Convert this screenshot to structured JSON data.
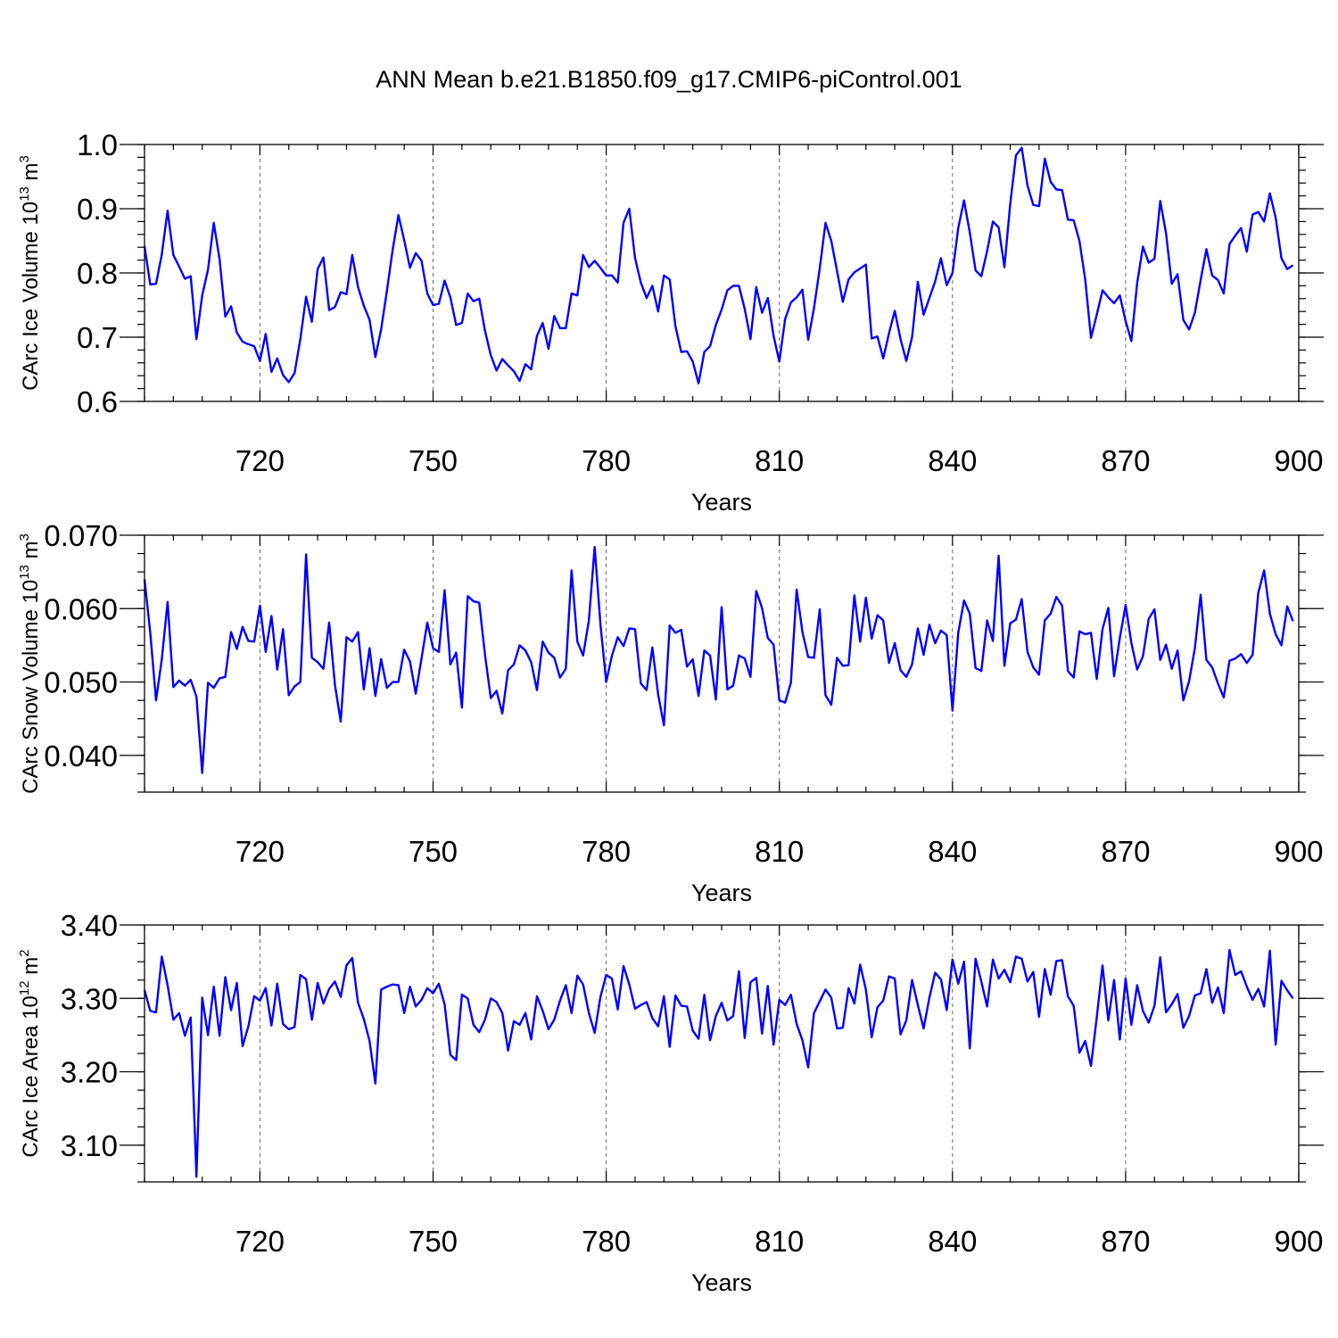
{
  "title": "ANN Mean b.e21.B1850.f09_g17.CMIP6-piControl.001",
  "colors": {
    "line": "#0000ff",
    "grid": "#666666",
    "axis": "#000000"
  },
  "chart_data": [
    {
      "type": "line",
      "xlabel": "Years",
      "ylabel": "CArc Ice Volume 10",
      "ylabel_exp": "13",
      "ylabel_unit": " m",
      "ylabel_unit_exp": "3",
      "xlim": [
        700,
        900
      ],
      "ylim": [
        0.6,
        1.0
      ],
      "xticks": [
        720,
        750,
        780,
        810,
        840,
        870,
        900
      ],
      "yticks": [
        0.6,
        0.7,
        0.8,
        0.9,
        1.0
      ],
      "ytick_labels": [
        "0.6",
        "0.7",
        "0.8",
        "0.9",
        "1.0"
      ],
      "yminor": 0.02,
      "x_start": 700,
      "values": [
        0.842,
        0.782,
        0.783,
        0.829,
        0.897,
        0.828,
        0.81,
        0.791,
        0.795,
        0.697,
        0.765,
        0.805,
        0.878,
        0.822,
        0.732,
        0.748,
        0.707,
        0.693,
        0.689,
        0.686,
        0.663,
        0.705,
        0.646,
        0.667,
        0.641,
        0.63,
        0.644,
        0.697,
        0.763,
        0.724,
        0.806,
        0.824,
        0.742,
        0.747,
        0.77,
        0.767,
        0.828,
        0.778,
        0.749,
        0.727,
        0.669,
        0.712,
        0.772,
        0.836,
        0.89,
        0.851,
        0.808,
        0.831,
        0.819,
        0.768,
        0.75,
        0.752,
        0.788,
        0.762,
        0.719,
        0.722,
        0.768,
        0.756,
        0.76,
        0.71,
        0.672,
        0.648,
        0.666,
        0.656,
        0.647,
        0.632,
        0.658,
        0.65,
        0.702,
        0.722,
        0.682,
        0.733,
        0.714,
        0.714,
        0.768,
        0.765,
        0.828,
        0.809,
        0.819,
        0.808,
        0.796,
        0.796,
        0.785,
        0.878,
        0.9,
        0.823,
        0.785,
        0.761,
        0.78,
        0.74,
        0.796,
        0.79,
        0.717,
        0.677,
        0.678,
        0.662,
        0.628,
        0.677,
        0.686,
        0.719,
        0.743,
        0.773,
        0.78,
        0.78,
        0.744,
        0.697,
        0.778,
        0.738,
        0.761,
        0.702,
        0.662,
        0.728,
        0.754,
        0.762,
        0.774,
        0.696,
        0.745,
        0.807,
        0.878,
        0.85,
        0.803,
        0.755,
        0.79,
        0.801,
        0.807,
        0.813,
        0.698,
        0.701,
        0.667,
        0.706,
        0.741,
        0.697,
        0.663,
        0.7,
        0.786,
        0.735,
        0.761,
        0.787,
        0.823,
        0.781,
        0.8,
        0.87,
        0.913,
        0.863,
        0.804,
        0.795,
        0.834,
        0.88,
        0.871,
        0.809,
        0.907,
        0.983,
        0.995,
        0.936,
        0.906,
        0.904,
        0.978,
        0.942,
        0.93,
        0.929,
        0.883,
        0.882,
        0.85,
        0.79,
        0.699,
        0.735,
        0.773,
        0.762,
        0.753,
        0.765,
        0.725,
        0.694,
        0.784,
        0.841,
        0.816,
        0.822,
        0.912,
        0.862,
        0.783,
        0.798,
        0.727,
        0.712,
        0.738,
        0.789,
        0.837,
        0.796,
        0.789,
        0.768,
        0.845,
        0.858,
        0.87,
        0.833,
        0.891,
        0.895,
        0.88,
        0.924,
        0.886,
        0.823,
        0.806,
        0.812
      ]
    },
    {
      "type": "line",
      "xlabel": "Years",
      "ylabel": "CArc Snow Volume 10",
      "ylabel_exp": "13",
      "ylabel_unit": " m",
      "ylabel_unit_exp": "3",
      "xlim": [
        700,
        900
      ],
      "ylim": [
        0.035,
        0.07
      ],
      "xticks": [
        720,
        750,
        780,
        810,
        840,
        870,
        900
      ],
      "yticks": [
        0.04,
        0.05,
        0.06,
        0.07
      ],
      "ytick_labels": [
        "0.040",
        "0.050",
        "0.060",
        "0.070"
      ],
      "yminor": 0.0025,
      "x_start": 700,
      "values": [
        0.064,
        0.0567,
        0.0475,
        0.0531,
        0.0609,
        0.0493,
        0.0502,
        0.0495,
        0.0503,
        0.048,
        0.0376,
        0.0499,
        0.0492,
        0.0505,
        0.0507,
        0.0568,
        0.0545,
        0.0575,
        0.0556,
        0.0555,
        0.0604,
        0.0541,
        0.059,
        0.0517,
        0.0572,
        0.0482,
        0.0494,
        0.05,
        0.0674,
        0.0533,
        0.0527,
        0.0518,
        0.0581,
        0.0496,
        0.0446,
        0.0561,
        0.0555,
        0.0568,
        0.049,
        0.0546,
        0.0481,
        0.0531,
        0.0492,
        0.05,
        0.05,
        0.0544,
        0.0528,
        0.0484,
        0.0532,
        0.0581,
        0.0546,
        0.0541,
        0.0625,
        0.0524,
        0.054,
        0.0465,
        0.0617,
        0.061,
        0.0608,
        0.0537,
        0.0478,
        0.0488,
        0.0457,
        0.0516,
        0.0524,
        0.055,
        0.0543,
        0.0527,
        0.0489,
        0.0555,
        0.054,
        0.0533,
        0.0506,
        0.0518,
        0.0652,
        0.0555,
        0.0536,
        0.0584,
        0.0684,
        0.0579,
        0.05,
        0.0536,
        0.0561,
        0.0549,
        0.0573,
        0.0572,
        0.0498,
        0.0489,
        0.0547,
        0.0483,
        0.0441,
        0.0577,
        0.0567,
        0.0571,
        0.0521,
        0.0531,
        0.0481,
        0.0543,
        0.0536,
        0.0476,
        0.0602,
        0.049,
        0.0495,
        0.0536,
        0.0532,
        0.0507,
        0.0624,
        0.0601,
        0.056,
        0.0551,
        0.0475,
        0.0472,
        0.0499,
        0.0626,
        0.0568,
        0.0534,
        0.0533,
        0.0599,
        0.0482,
        0.0469,
        0.0533,
        0.0522,
        0.0523,
        0.0618,
        0.0555,
        0.0615,
        0.0559,
        0.0591,
        0.0584,
        0.0526,
        0.0553,
        0.0516,
        0.0507,
        0.0524,
        0.0573,
        0.0537,
        0.0578,
        0.0553,
        0.057,
        0.0564,
        0.0461,
        0.0567,
        0.0611,
        0.0593,
        0.0519,
        0.0515,
        0.0584,
        0.0556,
        0.0672,
        0.0522,
        0.058,
        0.0585,
        0.0613,
        0.0541,
        0.052,
        0.051,
        0.0584,
        0.0593,
        0.0616,
        0.0604,
        0.0515,
        0.0506,
        0.0569,
        0.0565,
        0.0567,
        0.0504,
        0.0572,
        0.0601,
        0.0508,
        0.056,
        0.0605,
        0.0553,
        0.0517,
        0.0535,
        0.0586,
        0.0599,
        0.053,
        0.0551,
        0.0518,
        0.0543,
        0.0475,
        0.0501,
        0.0546,
        0.0619,
        0.053,
        0.052,
        0.0498,
        0.0479,
        0.0529,
        0.0532,
        0.0538,
        0.0526,
        0.0537,
        0.0622,
        0.0652,
        0.0593,
        0.0565,
        0.055,
        0.0603,
        0.0583
      ]
    },
    {
      "type": "line",
      "xlabel": "Years",
      "ylabel": "CArc Ice Area 10",
      "ylabel_exp": "12",
      "ylabel_unit": " m",
      "ylabel_unit_exp": "2",
      "xlim": [
        700,
        900
      ],
      "ylim": [
        3.05,
        3.4
      ],
      "xticks": [
        720,
        750,
        780,
        810,
        840,
        870,
        900
      ],
      "yticks": [
        3.1,
        3.2,
        3.3,
        3.4
      ],
      "ytick_labels": [
        "3.10",
        "3.20",
        "3.30",
        "3.40"
      ],
      "yminor": 0.025,
      "x_start": 700,
      "values": [
        3.311,
        3.283,
        3.281,
        3.357,
        3.318,
        3.271,
        3.28,
        3.249,
        3.274,
        3.057,
        3.301,
        3.25,
        3.316,
        3.249,
        3.329,
        3.284,
        3.321,
        3.235,
        3.262,
        3.303,
        3.297,
        3.314,
        3.263,
        3.32,
        3.265,
        3.258,
        3.261,
        3.332,
        3.326,
        3.271,
        3.321,
        3.293,
        3.313,
        3.323,
        3.302,
        3.345,
        3.355,
        3.294,
        3.272,
        3.242,
        3.184,
        3.312,
        3.316,
        3.319,
        3.318,
        3.28,
        3.316,
        3.289,
        3.298,
        3.314,
        3.307,
        3.32,
        3.292,
        3.223,
        3.216,
        3.305,
        3.3,
        3.264,
        3.254,
        3.271,
        3.3,
        3.295,
        3.28,
        3.229,
        3.269,
        3.264,
        3.28,
        3.244,
        3.303,
        3.283,
        3.258,
        3.271,
        3.297,
        3.318,
        3.28,
        3.331,
        3.319,
        3.28,
        3.253,
        3.302,
        3.332,
        3.327,
        3.285,
        3.344,
        3.319,
        3.286,
        3.291,
        3.295,
        3.273,
        3.262,
        3.303,
        3.234,
        3.304,
        3.29,
        3.289,
        3.256,
        3.245,
        3.305,
        3.243,
        3.276,
        3.294,
        3.27,
        3.276,
        3.337,
        3.246,
        3.322,
        3.328,
        3.252,
        3.317,
        3.237,
        3.298,
        3.291,
        3.305,
        3.265,
        3.243,
        3.206,
        3.28,
        3.296,
        3.312,
        3.301,
        3.259,
        3.26,
        3.314,
        3.293,
        3.346,
        3.312,
        3.247,
        3.288,
        3.297,
        3.33,
        3.327,
        3.251,
        3.27,
        3.325,
        3.291,
        3.259,
        3.301,
        3.335,
        3.326,
        3.284,
        3.353,
        3.32,
        3.35,
        3.232,
        3.354,
        3.323,
        3.289,
        3.353,
        3.327,
        3.339,
        3.322,
        3.357,
        3.354,
        3.323,
        3.336,
        3.275,
        3.34,
        3.305,
        3.351,
        3.352,
        3.303,
        3.29,
        3.226,
        3.242,
        3.208,
        3.274,
        3.345,
        3.27,
        3.325,
        3.244,
        3.327,
        3.264,
        3.318,
        3.283,
        3.267,
        3.29,
        3.356,
        3.281,
        3.292,
        3.306,
        3.26,
        3.276,
        3.304,
        3.307,
        3.34,
        3.294,
        3.315,
        3.28,
        3.366,
        3.332,
        3.337,
        3.316,
        3.298,
        3.313,
        3.289,
        3.365,
        3.237,
        3.324,
        3.311,
        3.3
      ]
    }
  ]
}
